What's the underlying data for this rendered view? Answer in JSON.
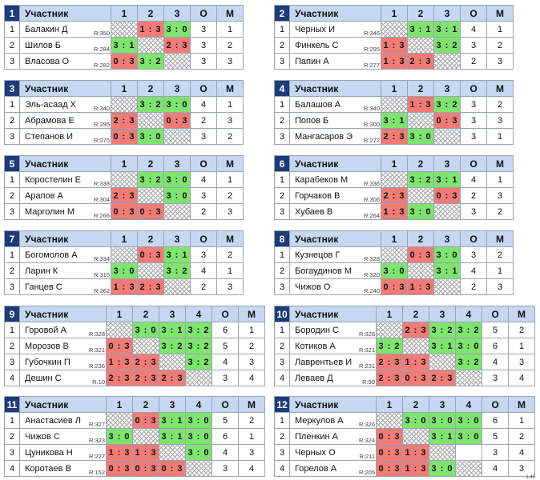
{
  "headers": {
    "participant": "Участник",
    "points": "О",
    "place": "М"
  },
  "groups": [
    {
      "num": "1",
      "cols": [
        "1",
        "2",
        "3"
      ],
      "rows": [
        {
          "idx": "1",
          "name": "Балакин Д",
          "rating": "R:350",
          "cells": [
            {
              "t": "s",
              "v": ""
            },
            {
              "t": "l",
              "v": "1 : 3"
            },
            {
              "t": "w",
              "v": "3 : 0"
            }
          ],
          "points": "3",
          "place": "1"
        },
        {
          "idx": "2",
          "name": "Шилов Б",
          "rating": "R:284",
          "cells": [
            {
              "t": "w",
              "v": "3 : 1"
            },
            {
              "t": "s",
              "v": ""
            },
            {
              "t": "l",
              "v": "2 : 3"
            }
          ],
          "points": "3",
          "place": "2"
        },
        {
          "idx": "3",
          "name": "Власова О",
          "rating": "R:282",
          "cells": [
            {
              "t": "l",
              "v": "0 : 3"
            },
            {
              "t": "w",
              "v": "3 : 2"
            },
            {
              "t": "s",
              "v": ""
            }
          ],
          "points": "3",
          "place": "3"
        }
      ]
    },
    {
      "num": "2",
      "cols": [
        "1",
        "2",
        "3"
      ],
      "rows": [
        {
          "idx": "1",
          "name": "Черных И",
          "rating": "R:346",
          "cells": [
            {
              "t": "s",
              "v": ""
            },
            {
              "t": "w",
              "v": "3 : 1"
            },
            {
              "t": "w",
              "v": "3 : 1"
            }
          ],
          "points": "4",
          "place": "1"
        },
        {
          "idx": "2",
          "name": "Финкель С",
          "rating": "R:295",
          "cells": [
            {
              "t": "l",
              "v": "1 : 3"
            },
            {
              "t": "s",
              "v": ""
            },
            {
              "t": "w",
              "v": "3 : 2"
            }
          ],
          "points": "3",
          "place": "2"
        },
        {
          "idx": "3",
          "name": "Папин А",
          "rating": "R:277",
          "cells": [
            {
              "t": "l",
              "v": "1 : 3"
            },
            {
              "t": "l",
              "v": "2 : 3"
            },
            {
              "t": "s",
              "v": ""
            }
          ],
          "points": "2",
          "place": "3"
        }
      ]
    },
    {
      "num": "3",
      "cols": [
        "1",
        "2",
        "3"
      ],
      "rows": [
        {
          "idx": "1",
          "name": "Эль-асаад Х",
          "rating": "R:340",
          "cells": [
            {
              "t": "s",
              "v": ""
            },
            {
              "t": "w",
              "v": "3 : 2"
            },
            {
              "t": "w",
              "v": "3 : 0"
            }
          ],
          "points": "4",
          "place": "1"
        },
        {
          "idx": "2",
          "name": "Абрамова Е",
          "rating": "R:295",
          "cells": [
            {
              "t": "l",
              "v": "2 : 3"
            },
            {
              "t": "s",
              "v": ""
            },
            {
              "t": "l",
              "v": "0 : 3"
            }
          ],
          "points": "2",
          "place": "3"
        },
        {
          "idx": "3",
          "name": "Степанов И",
          "rating": "R:275",
          "cells": [
            {
              "t": "l",
              "v": "0 : 3"
            },
            {
              "t": "w",
              "v": "3 : 0"
            },
            {
              "t": "s",
              "v": ""
            }
          ],
          "points": "3",
          "place": "2"
        }
      ]
    },
    {
      "num": "4",
      "cols": [
        "1",
        "2",
        "3"
      ],
      "rows": [
        {
          "idx": "1",
          "name": "Балашов А",
          "rating": "R:340",
          "cells": [
            {
              "t": "s",
              "v": ""
            },
            {
              "t": "l",
              "v": "1 : 3"
            },
            {
              "t": "w",
              "v": "3 : 2"
            }
          ],
          "points": "3",
          "place": "2"
        },
        {
          "idx": "2",
          "name": "Попов Б",
          "rating": "R:300",
          "cells": [
            {
              "t": "w",
              "v": "3 : 1"
            },
            {
              "t": "s",
              "v": ""
            },
            {
              "t": "l",
              "v": "0 : 3"
            }
          ],
          "points": "3",
          "place": "3"
        },
        {
          "idx": "3",
          "name": "Мангасаров Э",
          "rating": "R:272",
          "cells": [
            {
              "t": "l",
              "v": "2 : 3"
            },
            {
              "t": "w",
              "v": "3 : 0"
            },
            {
              "t": "s",
              "v": ""
            }
          ],
          "points": "3",
          "place": "1"
        }
      ]
    },
    {
      "num": "5",
      "cols": [
        "1",
        "2",
        "3"
      ],
      "rows": [
        {
          "idx": "1",
          "name": "Коростелин Е",
          "rating": "R:338",
          "cells": [
            {
              "t": "s",
              "v": ""
            },
            {
              "t": "w",
              "v": "3 : 2"
            },
            {
              "t": "w",
              "v": "3 : 0"
            }
          ],
          "points": "4",
          "place": "1"
        },
        {
          "idx": "2",
          "name": "Арапов А",
          "rating": "R:304",
          "cells": [
            {
              "t": "l",
              "v": "2 : 3"
            },
            {
              "t": "s",
              "v": ""
            },
            {
              "t": "w",
              "v": "3 : 0"
            }
          ],
          "points": "3",
          "place": "2"
        },
        {
          "idx": "3",
          "name": "Марголин М",
          "rating": "R:266",
          "cells": [
            {
              "t": "l",
              "v": "0 : 3"
            },
            {
              "t": "l",
              "v": "0 : 3"
            },
            {
              "t": "s",
              "v": ""
            }
          ],
          "points": "2",
          "place": "3"
        }
      ]
    },
    {
      "num": "6",
      "cols": [
        "1",
        "2",
        "3"
      ],
      "rows": [
        {
          "idx": "1",
          "name": "Карабеков М",
          "rating": "R:336",
          "cells": [
            {
              "t": "s",
              "v": ""
            },
            {
              "t": "w",
              "v": "3 : 2"
            },
            {
              "t": "w",
              "v": "3 : 1"
            }
          ],
          "points": "4",
          "place": "1"
        },
        {
          "idx": "2",
          "name": "Горчаков В",
          "rating": "R:306",
          "cells": [
            {
              "t": "l",
              "v": "2 : 3"
            },
            {
              "t": "s",
              "v": ""
            },
            {
              "t": "l",
              "v": "0 : 3"
            }
          ],
          "points": "2",
          "place": "3"
        },
        {
          "idx": "3",
          "name": "Хубаев В",
          "rating": "R:264",
          "cells": [
            {
              "t": "l",
              "v": "1 : 3"
            },
            {
              "t": "w",
              "v": "3 : 0"
            },
            {
              "t": "s",
              "v": ""
            }
          ],
          "points": "3",
          "place": "2"
        }
      ]
    },
    {
      "num": "7",
      "cols": [
        "1",
        "2",
        "3"
      ],
      "rows": [
        {
          "idx": "1",
          "name": "Богомолов А",
          "rating": "R:334",
          "cells": [
            {
              "t": "s",
              "v": ""
            },
            {
              "t": "l",
              "v": "0 : 3"
            },
            {
              "t": "w",
              "v": "3 : 1"
            }
          ],
          "points": "3",
          "place": "2"
        },
        {
          "idx": "2",
          "name": "Ларин К",
          "rating": "R:315",
          "cells": [
            {
              "t": "w",
              "v": "3 : 0"
            },
            {
              "t": "s",
              "v": ""
            },
            {
              "t": "w",
              "v": "3 : 2"
            }
          ],
          "points": "4",
          "place": "1"
        },
        {
          "idx": "3",
          "name": "Ганцев С",
          "rating": "R:262",
          "cells": [
            {
              "t": "l",
              "v": "1 : 3"
            },
            {
              "t": "l",
              "v": "2 : 3"
            },
            {
              "t": "s",
              "v": ""
            }
          ],
          "points": "2",
          "place": "3"
        }
      ]
    },
    {
      "num": "8",
      "cols": [
        "1",
        "2",
        "3"
      ],
      "rows": [
        {
          "idx": "1",
          "name": "Кузнецов Г",
          "rating": "R:328",
          "cells": [
            {
              "t": "s",
              "v": ""
            },
            {
              "t": "l",
              "v": "0 : 3"
            },
            {
              "t": "w",
              "v": "3 : 0"
            }
          ],
          "points": "3",
          "place": "2"
        },
        {
          "idx": "2",
          "name": "Богаудинов М",
          "rating": "R:320",
          "cells": [
            {
              "t": "w",
              "v": "3 : 0"
            },
            {
              "t": "s",
              "v": ""
            },
            {
              "t": "w",
              "v": "3 : 1"
            }
          ],
          "points": "4",
          "place": "1"
        },
        {
          "idx": "3",
          "name": "Чижов О",
          "rating": "R:240",
          "cells": [
            {
              "t": "l",
              "v": "0 : 3"
            },
            {
              "t": "l",
              "v": "1 : 3"
            },
            {
              "t": "s",
              "v": ""
            }
          ],
          "points": "2",
          "place": "3"
        }
      ]
    },
    {
      "num": "9",
      "cols": [
        "1",
        "2",
        "3",
        "4"
      ],
      "rows": [
        {
          "idx": "1",
          "name": "Горовой А",
          "rating": "R:328",
          "cells": [
            {
              "t": "s",
              "v": ""
            },
            {
              "t": "w",
              "v": "3 : 0"
            },
            {
              "t": "w",
              "v": "3 : 1"
            },
            {
              "t": "w",
              "v": "3 : 2"
            }
          ],
          "points": "6",
          "place": "1"
        },
        {
          "idx": "2",
          "name": "Морозов В",
          "rating": "R:321",
          "cells": [
            {
              "t": "l",
              "v": "0 : 3"
            },
            {
              "t": "s",
              "v": ""
            },
            {
              "t": "w",
              "v": "3 : 2"
            },
            {
              "t": "w",
              "v": "3 : 2"
            }
          ],
          "points": "5",
          "place": "2"
        },
        {
          "idx": "3",
          "name": "Губочкин П",
          "rating": "R:236",
          "cells": [
            {
              "t": "l",
              "v": "1 : 3"
            },
            {
              "t": "l",
              "v": "2 : 3"
            },
            {
              "t": "s",
              "v": ""
            },
            {
              "t": "w",
              "v": "3 : 2"
            }
          ],
          "points": "4",
          "place": "3"
        },
        {
          "idx": "4",
          "name": "Дешин С",
          "rating": "R:10",
          "cells": [
            {
              "t": "l",
              "v": "2 : 3"
            },
            {
              "t": "l",
              "v": "2 : 3"
            },
            {
              "t": "l",
              "v": "2 : 3"
            },
            {
              "t": "s",
              "v": ""
            }
          ],
          "points": "3",
          "place": "4"
        }
      ]
    },
    {
      "num": "10",
      "cols": [
        "1",
        "2",
        "3",
        "4"
      ],
      "rows": [
        {
          "idx": "1",
          "name": "Бородин С",
          "rating": "R:328",
          "cells": [
            {
              "t": "s",
              "v": ""
            },
            {
              "t": "l",
              "v": "2 : 3"
            },
            {
              "t": "w",
              "v": "3 : 2"
            },
            {
              "t": "w",
              "v": "3 : 2"
            }
          ],
          "points": "5",
          "place": "2"
        },
        {
          "idx": "2",
          "name": "Котиков А",
          "rating": "R:321",
          "cells": [
            {
              "t": "w",
              "v": "3 : 2"
            },
            {
              "t": "s",
              "v": ""
            },
            {
              "t": "w",
              "v": "3 : 1"
            },
            {
              "t": "w",
              "v": "3 : 0"
            }
          ],
          "points": "6",
          "place": "1"
        },
        {
          "idx": "3",
          "name": "Лаврентьев И",
          "rating": "R:231",
          "cells": [
            {
              "t": "l",
              "v": "2 : 3"
            },
            {
              "t": "l",
              "v": "1 : 3"
            },
            {
              "t": "s",
              "v": ""
            },
            {
              "t": "w",
              "v": "3 : 2"
            }
          ],
          "points": "4",
          "place": "3"
        },
        {
          "idx": "4",
          "name": "Леваев Д",
          "rating": "R:99",
          "cells": [
            {
              "t": "l",
              "v": "2 : 3"
            },
            {
              "t": "l",
              "v": "0 : 3"
            },
            {
              "t": "l",
              "v": "2 : 3"
            },
            {
              "t": "s",
              "v": ""
            }
          ],
          "points": "3",
          "place": "4"
        }
      ]
    },
    {
      "num": "11",
      "cols": [
        "1",
        "2",
        "3",
        "4"
      ],
      "rows": [
        {
          "idx": "1",
          "name": "Анастасиев Л",
          "rating": "R:327",
          "cells": [
            {
              "t": "s",
              "v": ""
            },
            {
              "t": "l",
              "v": "0 : 3"
            },
            {
              "t": "w",
              "v": "3 : 1"
            },
            {
              "t": "w",
              "v": "3 : 0"
            }
          ],
          "points": "5",
          "place": "2"
        },
        {
          "idx": "2",
          "name": "Чижов С",
          "rating": "R:323",
          "cells": [
            {
              "t": "w",
              "v": "3 : 0"
            },
            {
              "t": "s",
              "v": ""
            },
            {
              "t": "w",
              "v": "3 : 1"
            },
            {
              "t": "w",
              "v": "3 : 0"
            }
          ],
          "points": "6",
          "place": "1"
        },
        {
          "idx": "3",
          "name": "Цуникова Н",
          "rating": "R:227",
          "cells": [
            {
              "t": "l",
              "v": "1 : 3"
            },
            {
              "t": "l",
              "v": "1 : 3"
            },
            {
              "t": "s",
              "v": ""
            },
            {
              "t": "w",
              "v": "3 : 0"
            }
          ],
          "points": "4",
          "place": "3"
        },
        {
          "idx": "4",
          "name": "Коротаев В",
          "rating": "R:152",
          "cells": [
            {
              "t": "l",
              "v": "0 : 3"
            },
            {
              "t": "l",
              "v": "0 : 3"
            },
            {
              "t": "l",
              "v": "0 : 3"
            },
            {
              "t": "s",
              "v": ""
            }
          ],
          "points": "3",
          "place": "4"
        }
      ]
    },
    {
      "num": "12",
      "cols": [
        "1",
        "2",
        "3",
        "4"
      ],
      "rows": [
        {
          "idx": "1",
          "name": "Меркулов А",
          "rating": "R:326",
          "cells": [
            {
              "t": "s",
              "v": ""
            },
            {
              "t": "w",
              "v": "3 : 0"
            },
            {
              "t": "w",
              "v": "3 : 0"
            },
            {
              "t": "w",
              "v": "3 : 0"
            }
          ],
          "points": "6",
          "place": "1"
        },
        {
          "idx": "2",
          "name": "Пленкин А",
          "rating": "R:324",
          "cells": [
            {
              "t": "l",
              "v": "0 : 3"
            },
            {
              "t": "s",
              "v": ""
            },
            {
              "t": "w",
              "v": "3 : 1"
            },
            {
              "t": "w",
              "v": "3 : 0"
            }
          ],
          "points": "5",
          "place": "2"
        },
        {
          "idx": "3",
          "name": "Черных О",
          "rating": "R:211",
          "cells": [
            {
              "t": "l",
              "v": "0 : 3"
            },
            {
              "t": "l",
              "v": "1 : 3"
            },
            {
              "t": "s",
              "v": ""
            },
            {
              "t": "e",
              "v": ""
            }
          ],
          "points": "3",
          "place": "4"
        },
        {
          "idx": "4",
          "name": "Горелов А",
          "rating": "R:205",
          "cells": [
            {
              "t": "l",
              "v": "0 : 3"
            },
            {
              "t": "l",
              "v": "1 : 3"
            },
            {
              "t": "w",
              "v": "3 : 0"
            },
            {
              "t": "s",
              "v": ""
            }
          ],
          "points": "4",
          "place": "3"
        }
      ]
    }
  ],
  "version": "1.40"
}
